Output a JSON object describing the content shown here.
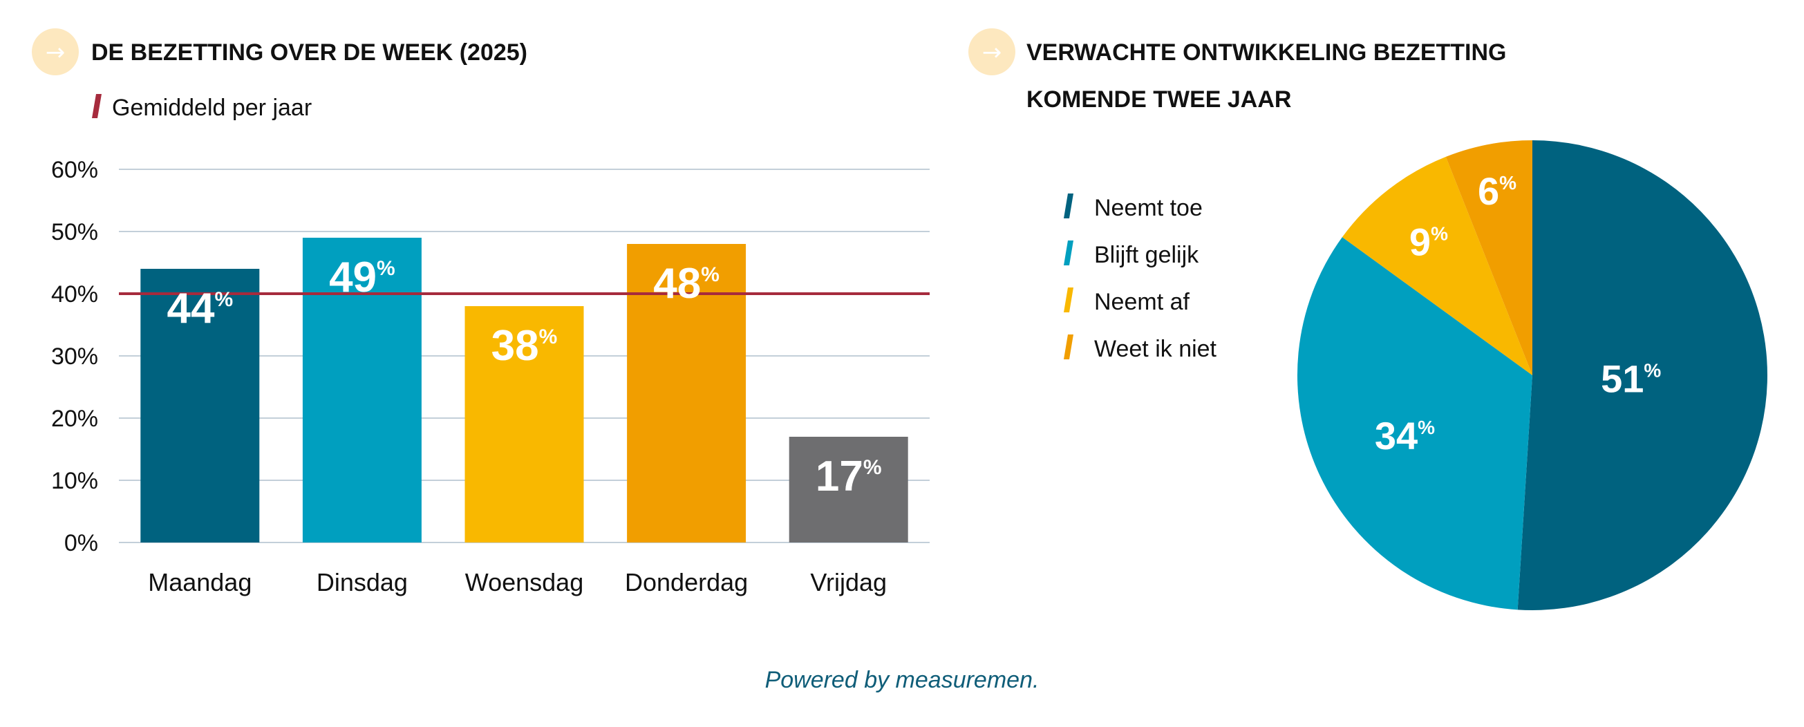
{
  "colors": {
    "dark_teal": "#00627f",
    "light_blue": "#009fbf",
    "yellow": "#f9b800",
    "orange": "#f19e00",
    "gray": "#6e6e70",
    "average_line": "#a62b3d",
    "title_icon_circle": "#fde8bf",
    "grid": "#c3cfd9",
    "footer": "#0f5d78"
  },
  "icons": {
    "title_arrow": "arrow-right-circle-icon"
  },
  "footer": {
    "text": "Powered by measuremen."
  },
  "chart_data": [
    {
      "type": "bar",
      "title": "DE BEZETTING OVER DE WEEK (2025)",
      "legend": {
        "label": "Gemiddeld per jaar",
        "color": "#a62b3d",
        "placement": "top-left"
      },
      "categories": [
        "Maandag",
        "Dinsdag",
        "Woensdag",
        "Donderdag",
        "Vrijdag"
      ],
      "values": [
        44,
        49,
        38,
        48,
        17
      ],
      "value_labels": [
        "44",
        "49",
        "38",
        "48",
        "17"
      ],
      "value_suffix": "%",
      "bar_colors": [
        "#00627f",
        "#009fbf",
        "#f9b800",
        "#f19e00",
        "#6e6e70"
      ],
      "average": 40,
      "ylim": [
        0,
        60
      ],
      "yticks": [
        0,
        10,
        20,
        30,
        40,
        50,
        60
      ],
      "ytick_labels": [
        "0%",
        "10%",
        "20%",
        "30%",
        "40%",
        "50%",
        "60%"
      ],
      "grid": true,
      "xlabel": "",
      "ylabel": ""
    },
    {
      "type": "pie",
      "title_lines": [
        "VERWACHTE ONTWIKKELING BEZETTING",
        "KOMENDE TWEE JAAR"
      ],
      "categories": [
        "Neemt toe",
        "Blijft gelijk",
        "Neemt af",
        "Weet ik niet"
      ],
      "values": [
        51,
        34,
        9,
        6
      ],
      "value_labels": [
        "51",
        "34",
        "9",
        "6"
      ],
      "value_suffix": "%",
      "colors": [
        "#00627f",
        "#009fbf",
        "#f9b800",
        "#f19e00"
      ],
      "legend_placement": "left"
    }
  ]
}
